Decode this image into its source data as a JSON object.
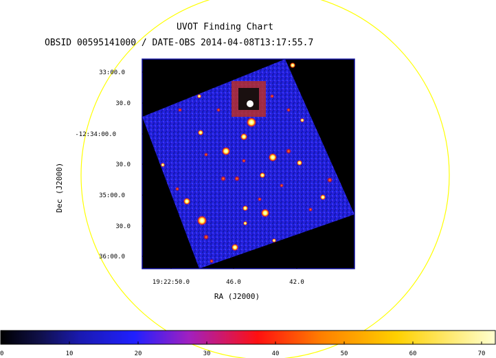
{
  "title": "UVOT Finding Chart",
  "subtitle": "OBSID 00595141000 / DATE-OBS 2014-04-08T13:17:55.7",
  "axes": {
    "xlabel": "RA (J2000)",
    "ylabel": "Dec (J2000)",
    "x_ticks": [
      "19:22:50.0",
      "46.0",
      "42.0"
    ],
    "y_ticks": [
      "33:00.0",
      "30.0",
      "-12:34:00.0",
      "30.0",
      "35:00.0",
      "30.0",
      "36:00.0"
    ]
  },
  "colorbar": {
    "ticks": [
      "0",
      "10",
      "20",
      "30",
      "40",
      "50",
      "60",
      "70"
    ],
    "min": 0,
    "max": 72
  },
  "colors": {
    "circle": "#ffff00",
    "background": "#000000",
    "frame": "#1010a0"
  }
}
